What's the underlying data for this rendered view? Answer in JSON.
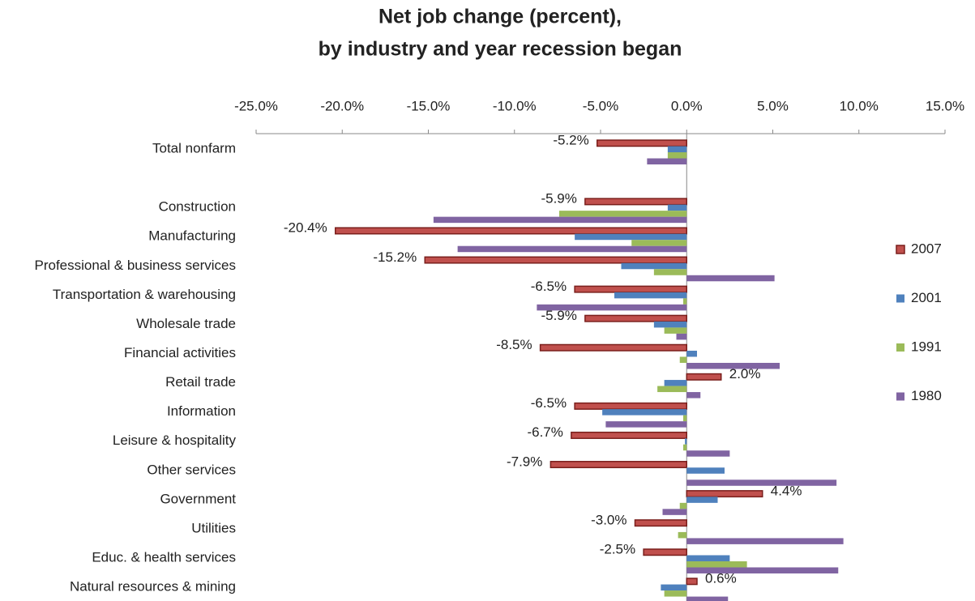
{
  "chart_data": {
    "type": "bar",
    "orientation": "horizontal",
    "title": [
      "Net job change (percent),",
      "by industry and year recession began"
    ],
    "categories": [
      "Total nonfarm",
      null,
      "Construction",
      "Manufacturing",
      "Professional & business services",
      "Transportation & warehousing",
      "Wholesale trade",
      "Financial activities",
      "Retail trade",
      "Information",
      "Leisure & hospitality",
      "Other services",
      "Government",
      "Utilities",
      "Educ. & health services",
      "Natural resources & mining"
    ],
    "series": [
      {
        "name": "2007",
        "color": "#c0504d",
        "values": [
          -5.2,
          null,
          -5.9,
          -20.4,
          -15.2,
          -6.5,
          -5.9,
          -8.5,
          2.0,
          -6.5,
          -6.7,
          -7.9,
          4.4,
          -3.0,
          -2.5,
          0.6
        ],
        "value_labels": [
          "-5.2%",
          null,
          "-5.9%",
          "-20.4%",
          "-15.2%",
          "-6.5%",
          "-5.9%",
          "-8.5%",
          "2.0%",
          "-6.5%",
          "-6.7%",
          "-7.9%",
          "4.4%",
          "-3.0%",
          "-2.5%",
          "0.6%"
        ]
      },
      {
        "name": "2001",
        "color": "#4f81bd",
        "values": [
          -1.1,
          null,
          -1.1,
          -6.5,
          -3.8,
          -4.2,
          -1.9,
          0.6,
          -1.3,
          -4.9,
          -0.1,
          2.2,
          1.8,
          0.0,
          2.5,
          -1.5
        ]
      },
      {
        "name": "1991",
        "color": "#9bbb59",
        "values": [
          -1.1,
          null,
          -7.4,
          -3.2,
          -1.9,
          -0.2,
          -1.3,
          -0.4,
          -1.7,
          -0.2,
          -0.2,
          0.0,
          -0.4,
          -0.5,
          3.5,
          -1.3
        ]
      },
      {
        "name": "1980",
        "color": "#8064a2",
        "values": [
          -2.3,
          null,
          -14.7,
          -13.3,
          5.1,
          -8.7,
          -0.6,
          5.4,
          0.8,
          -4.7,
          2.5,
          8.7,
          -1.4,
          9.1,
          8.8,
          2.4
        ]
      }
    ],
    "xlim": [
      -25,
      15
    ],
    "xticks": [
      {
        "value": -25,
        "label": "-25.0%"
      },
      {
        "value": -20,
        "label": "-20.0%"
      },
      {
        "value": -15,
        "label": "-15.0%"
      },
      {
        "value": -10,
        "label": "-10.0%"
      },
      {
        "value": -5,
        "label": "-5.0%"
      },
      {
        "value": 0,
        "label": "0.0%"
      },
      {
        "value": 5,
        "label": "5.0%"
      },
      {
        "value": 10,
        "label": "10.0%"
      },
      {
        "value": 15,
        "label": "15.0%"
      }
    ],
    "grid": false,
    "legend_position": "right"
  }
}
